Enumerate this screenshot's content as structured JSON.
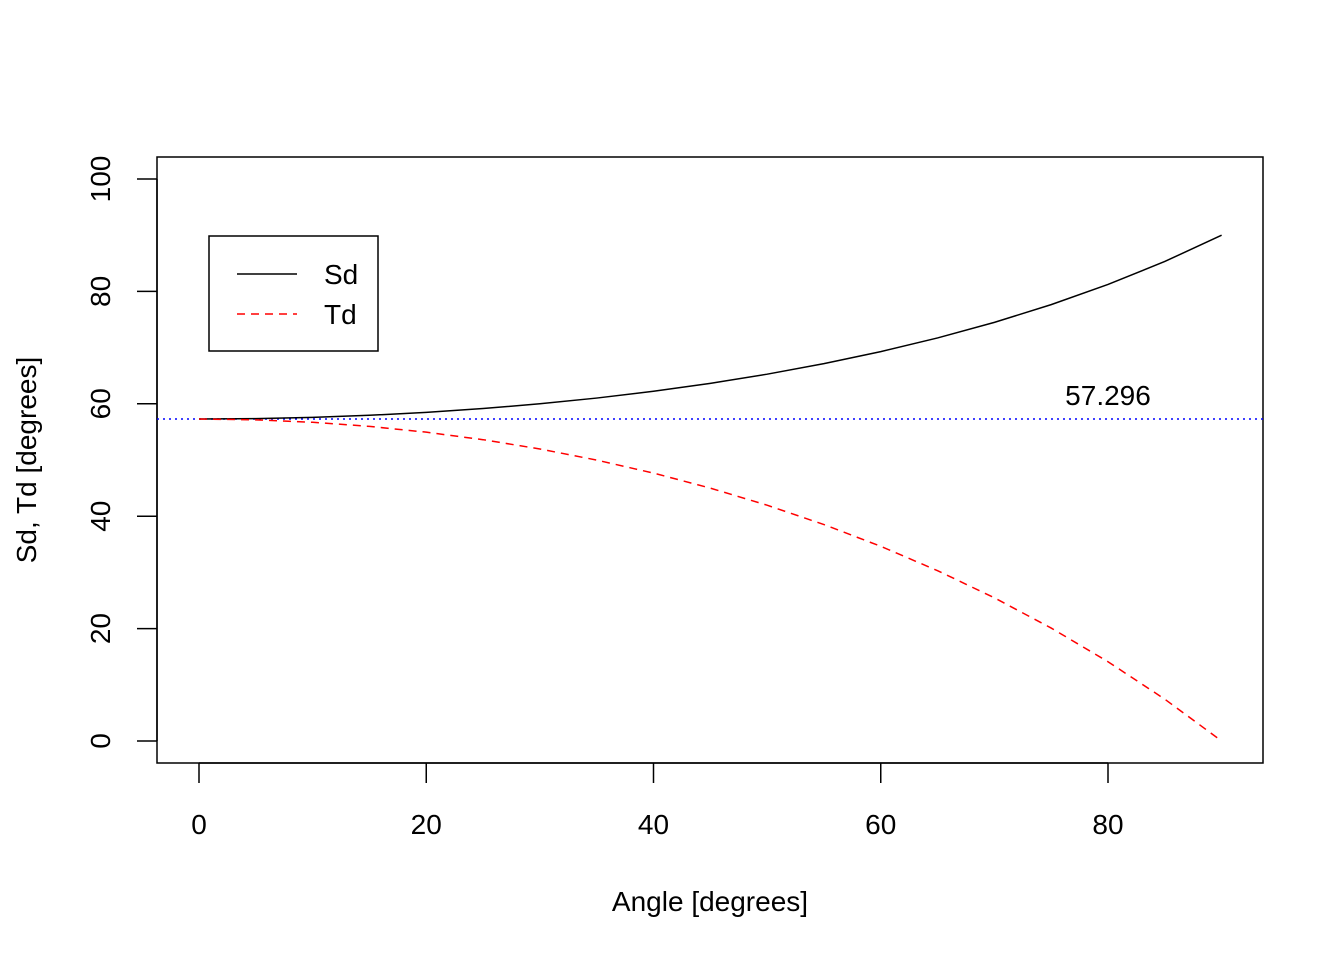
{
  "chart_data": {
    "type": "line",
    "title": "",
    "xlabel": "Angle [degrees]",
    "ylabel": "Sd, Td  [degrees]",
    "xlim": [
      -3.6,
      93.6
    ],
    "ylim": [
      -4,
      104
    ],
    "xticks": [
      0,
      20,
      40,
      60,
      80
    ],
    "yticks": [
      0,
      20,
      40,
      60,
      80,
      100
    ],
    "grid": false,
    "legend_position": "top-left",
    "x": [
      0,
      5,
      10,
      15,
      20,
      25,
      30,
      35,
      40,
      45,
      50,
      55,
      60,
      65,
      70,
      75,
      80,
      85,
      90
    ],
    "series": [
      {
        "name": "Sd",
        "color": "#000000",
        "dash": "solid",
        "values": [
          57.296,
          57.368,
          57.588,
          57.955,
          58.476,
          59.155,
          60.0,
          61.021,
          62.229,
          63.64,
          65.27,
          67.143,
          69.282,
          71.72,
          74.492,
          77.646,
          81.234,
          85.325,
          90.0
        ]
      },
      {
        "name": "Td",
        "color": "#ff0000",
        "dash": "dashed",
        "values": [
          57.296,
          57.15,
          56.713,
          55.981,
          54.95,
          53.613,
          51.962,
          49.985,
          47.67,
          45.0,
          41.955,
          38.511,
          34.641,
          30.31,
          25.478,
          20.096,
          14.106,
          7.437,
          0.0
        ]
      }
    ],
    "hline": {
      "value": 57.296,
      "color": "#0000ff",
      "dash": "dotted"
    },
    "annotations": [
      {
        "text": "57.296",
        "x": 80,
        "y": 61.5
      }
    ]
  }
}
